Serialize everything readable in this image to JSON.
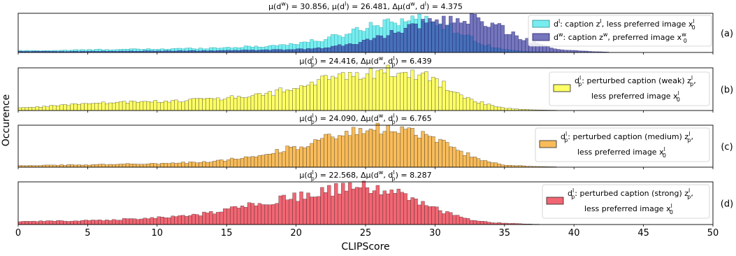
{
  "chart_data": {
    "type": "histogram",
    "xlabel": "CLIPScore",
    "ylabel": "Occurence",
    "xlim": [
      0,
      50
    ],
    "xticks": [
      "0",
      "5",
      "10",
      "15",
      "20",
      "25",
      "30",
      "35",
      "40",
      "45",
      "50"
    ],
    "grid": false,
    "panels": [
      {
        "id": "a",
        "tag": "(a)",
        "title_parts": [
          "μ(d",
          "w",
          ") = 30.856, μ(d",
          "l",
          ") = 26.481, Δμ(d",
          "w",
          ", d",
          "l",
          ") = 4.375"
        ],
        "legend_placement": "top-right",
        "series": [
          {
            "name": "d^l: caption z^l, less preferred image x_0^l",
            "legend_parts": [
              "d",
              "l",
              ": caption z",
              "l",
              ", less preferred image x",
              "l",
              "0"
            ],
            "color": "#3fe6ea",
            "edge": "#1f8f93",
            "opacity": 0.7,
            "profile": [
              [
                0,
                0.05
              ],
              [
                2,
                0.05
              ],
              [
                6,
                0.08
              ],
              [
                10,
                0.09
              ],
              [
                14,
                0.12
              ],
              [
                18,
                0.17
              ],
              [
                20,
                0.24
              ],
              [
                22,
                0.34
              ],
              [
                24,
                0.55
              ],
              [
                25,
                0.68
              ],
              [
                26,
                0.8
              ],
              [
                27,
                0.85
              ],
              [
                28,
                0.88
              ],
              [
                29,
                0.88
              ],
              [
                30,
                0.84
              ],
              [
                31,
                0.68
              ],
              [
                32,
                0.5
              ],
              [
                33,
                0.3
              ],
              [
                34,
                0.17
              ],
              [
                35,
                0.08
              ],
              [
                36,
                0.04
              ],
              [
                37,
                0.02
              ],
              [
                40,
                0.0
              ]
            ]
          },
          {
            "name": "d^w: caption z^w, preferred image x_0^w",
            "legend_parts": [
              "d",
              "w",
              ": caption z",
              "w",
              ", preferred image x",
              "w",
              "0"
            ],
            "color": "#2d2d99",
            "edge": "#1d1d66",
            "opacity": 0.65,
            "profile": [
              [
                0,
                0.03
              ],
              [
                5,
                0.03
              ],
              [
                10,
                0.04
              ],
              [
                15,
                0.05
              ],
              [
                20,
                0.08
              ],
              [
                22,
                0.12
              ],
              [
                24,
                0.22
              ],
              [
                26,
                0.4
              ],
              [
                27,
                0.52
              ],
              [
                28,
                0.64
              ],
              [
                29,
                0.74
              ],
              [
                30,
                0.82
              ],
              [
                31,
                0.88
              ],
              [
                32,
                0.9
              ],
              [
                33,
                0.86
              ],
              [
                34,
                0.76
              ],
              [
                35,
                0.6
              ],
              [
                36,
                0.43
              ],
              [
                37,
                0.28
              ],
              [
                38,
                0.16
              ],
              [
                39,
                0.09
              ],
              [
                40,
                0.05
              ],
              [
                41,
                0.03
              ],
              [
                42,
                0.02
              ],
              [
                43,
                0.0
              ]
            ]
          }
        ]
      },
      {
        "id": "b",
        "tag": "(b)",
        "title_parts": [
          "μ(d",
          "l",
          "p",
          ") = 24.416, Δμ(d",
          "w",
          ", d",
          "l",
          "p",
          ") = 6.439"
        ],
        "title_fmt": "sup-sub",
        "legend_placement": "center-right",
        "series": [
          {
            "name": "d_p^l: perturbed caption (weak) z_p^l, less preferred image x_0^l",
            "legend_line1": [
              "d",
              "l",
              "p",
              ": perturbed caption (weak) z",
              "l",
              "p",
              ","
            ],
            "legend_line2": [
              "less preferred image x",
              "l",
              "0"
            ],
            "color": "#ffff33",
            "edge": "#222222",
            "opacity": 0.75,
            "profile": [
              [
                0,
                0.06
              ],
              [
                5,
                0.17
              ],
              [
                10,
                0.22
              ],
              [
                15,
                0.3
              ],
              [
                18,
                0.4
              ],
              [
                20,
                0.56
              ],
              [
                22,
                0.74
              ],
              [
                24,
                0.86
              ],
              [
                25,
                0.93
              ],
              [
                26,
                0.96
              ],
              [
                27,
                0.96
              ],
              [
                28,
                0.92
              ],
              [
                29,
                0.86
              ],
              [
                30,
                0.74
              ],
              [
                31,
                0.56
              ],
              [
                32,
                0.38
              ],
              [
                33,
                0.22
              ],
              [
                34,
                0.12
              ],
              [
                35,
                0.06
              ],
              [
                36,
                0.03
              ],
              [
                38,
                0.01
              ],
              [
                40,
                0.0
              ]
            ]
          }
        ]
      },
      {
        "id": "c",
        "tag": "(c)",
        "title_parts": [
          "μ(d",
          "l",
          "p",
          ") = 24.090, Δμ(d",
          "w",
          ", d",
          "l",
          "p",
          ") = 6.765"
        ],
        "title_fmt": "sup-sub",
        "legend_placement": "center-right",
        "series": [
          {
            "name": "d_p^l: perturbed caption (medium) z_p^l, less preferred image x_0^l",
            "legend_line1": [
              "d",
              "l",
              "p",
              ": perturbed caption (medium) z",
              "l",
              "p",
              ","
            ],
            "legend_line2": [
              "less preferred image x",
              "l",
              "0"
            ],
            "color": "#f5a623",
            "edge": "#222222",
            "opacity": 0.75,
            "profile": [
              [
                0,
                0.04
              ],
              [
                5,
                0.06
              ],
              [
                10,
                0.09
              ],
              [
                13,
                0.12
              ],
              [
                15,
                0.18
              ],
              [
                17,
                0.28
              ],
              [
                19,
                0.42
              ],
              [
                21,
                0.6
              ],
              [
                23,
                0.76
              ],
              [
                24,
                0.84
              ],
              [
                25,
                0.9
              ],
              [
                26,
                0.94
              ],
              [
                27,
                0.92
              ],
              [
                28,
                0.88
              ],
              [
                29,
                0.82
              ],
              [
                30,
                0.7
              ],
              [
                31,
                0.52
              ],
              [
                32,
                0.36
              ],
              [
                33,
                0.22
              ],
              [
                34,
                0.12
              ],
              [
                35,
                0.06
              ],
              [
                37,
                0.02
              ],
              [
                40,
                0.0
              ]
            ]
          }
        ]
      },
      {
        "id": "d",
        "tag": "(d)",
        "title_parts": [
          "μ(d",
          "l",
          "p",
          ") = 22.568, Δμ(d",
          "w",
          ", d",
          "l",
          "p",
          ") = 8.287"
        ],
        "title_fmt": "sup-sub",
        "legend_placement": "center-right",
        "series": [
          {
            "name": "d_p^l: perturbed caption (strong) z_p^l, less preferred image x_0^l",
            "legend_line1": [
              "d",
              "l",
              "p",
              ": perturbed caption (strong) z",
              "l",
              "p",
              ","
            ],
            "legend_line2": [
              "less preferred image x",
              "l",
              "0"
            ],
            "color": "#ee3344",
            "edge": "#222222",
            "opacity": 0.75,
            "profile": [
              [
                0,
                0.07
              ],
              [
                5,
                0.1
              ],
              [
                10,
                0.16
              ],
              [
                13,
                0.24
              ],
              [
                15,
                0.36
              ],
              [
                17,
                0.5
              ],
              [
                19,
                0.62
              ],
              [
                21,
                0.74
              ],
              [
                23,
                0.86
              ],
              [
                24,
                0.92
              ],
              [
                25,
                0.9
              ],
              [
                26,
                0.84
              ],
              [
                27,
                0.78
              ],
              [
                28,
                0.68
              ],
              [
                29,
                0.54
              ],
              [
                30,
                0.4
              ],
              [
                31,
                0.26
              ],
              [
                32,
                0.16
              ],
              [
                33,
                0.09
              ],
              [
                34,
                0.05
              ],
              [
                36,
                0.02
              ],
              [
                38,
                0.0
              ]
            ]
          }
        ]
      }
    ]
  }
}
